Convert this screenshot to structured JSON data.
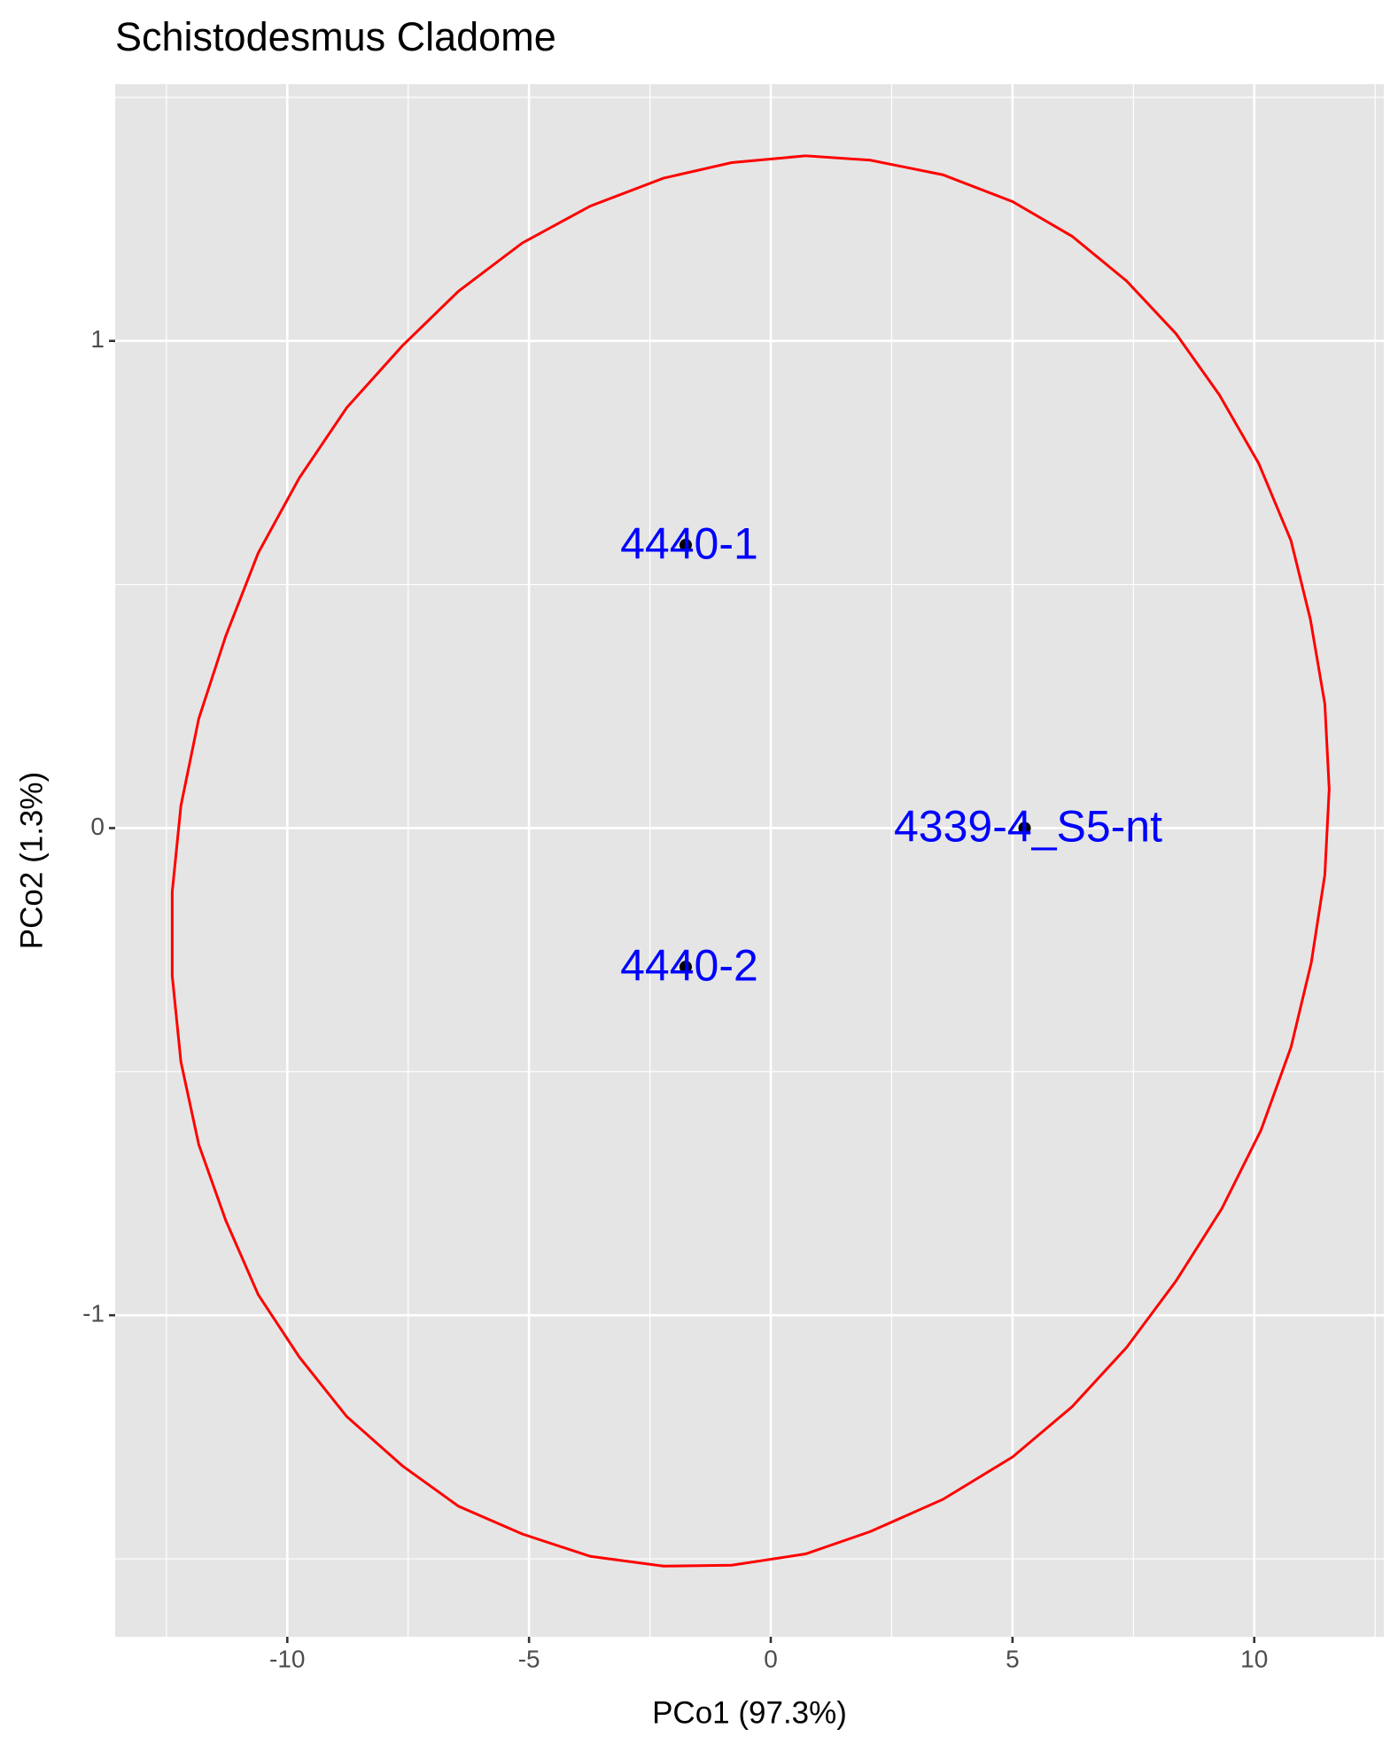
{
  "chart_data": {
    "type": "scatter",
    "title": "Schistodesmus Cladome",
    "xlabel": "PCo1 (97.3%)",
    "ylabel": "PCo2 (1.3%)",
    "series": [
      {
        "color": "#000000",
        "label_color": "#0000ff",
        "labels": [
          "4440-1",
          "4440-2",
          "4339-4_S5-nt"
        ],
        "x": [
          -1.76,
          -1.76,
          5.25
        ],
        "values": [
          0.581,
          -0.285,
          0
        ]
      }
    ],
    "ellipse": {
      "color": "#ff0000",
      "x": [
        0.72,
        2.06,
        3.56,
        5.0,
        6.23,
        7.36,
        8.38,
        9.28,
        10.09,
        10.76,
        11.16,
        11.46,
        11.55,
        11.46,
        11.18,
        10.76,
        10.14,
        9.33,
        8.38,
        7.36,
        6.23,
        5.0,
        3.56,
        2.06,
        0.72,
        -0.81,
        -2.22,
        -3.73,
        -5.14,
        -6.46,
        -7.62,
        -8.77,
        -9.75,
        -10.6,
        -11.27,
        -11.83,
        -12.2,
        -12.38,
        -12.38,
        -12.2,
        -11.83,
        -11.27,
        -10.6,
        -9.75,
        -8.77,
        -7.62,
        -6.46,
        -5.14,
        -3.73,
        -2.22,
        -0.81,
        0.72
      ],
      "values": [
        1.38,
        1.371,
        1.341,
        1.286,
        1.215,
        1.123,
        1.015,
        0.889,
        0.749,
        0.59,
        0.429,
        0.255,
        0.08,
        -0.096,
        -0.276,
        -0.45,
        -0.62,
        -0.781,
        -0.93,
        -1.066,
        -1.188,
        -1.291,
        -1.378,
        -1.444,
        -1.49,
        -1.513,
        -1.515,
        -1.495,
        -1.449,
        -1.392,
        -1.309,
        -1.208,
        -1.086,
        -0.958,
        -0.806,
        -0.65,
        -0.48,
        -0.303,
        -0.131,
        0.046,
        0.225,
        0.395,
        0.565,
        0.719,
        0.863,
        0.99,
        1.102,
        1.201,
        1.277,
        1.334,
        1.366,
        1.38
      ]
    },
    "xlim": [
      -13.56,
      12.68
    ],
    "ylim": [
      -1.66,
      1.527
    ],
    "xticks": [
      -10,
      -5,
      0,
      5,
      10
    ],
    "yticks": [
      -1,
      0,
      1
    ],
    "xminor": [
      -12.5,
      -7.5,
      -2.5,
      2.5,
      7.5,
      12.5
    ],
    "yminor": [
      -1.5,
      -0.5,
      0.5,
      1.5
    ],
    "grid": true
  }
}
